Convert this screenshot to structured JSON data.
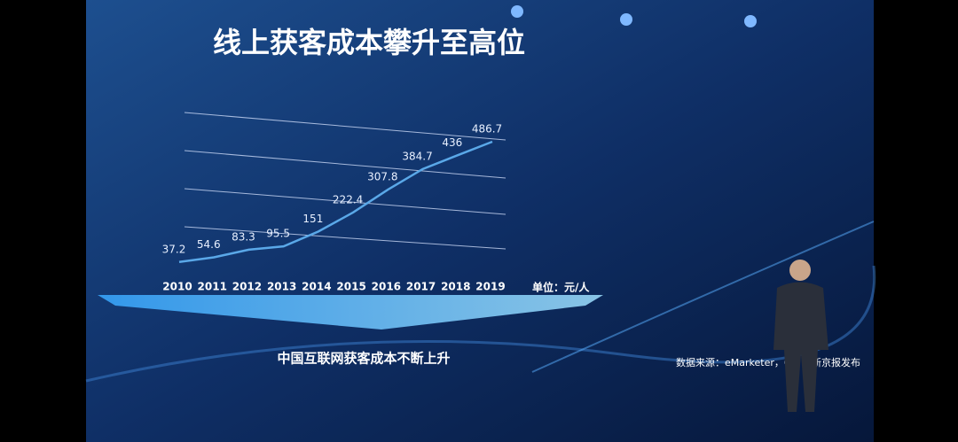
{
  "chart_data": {
    "type": "line",
    "title": "线上获客成本攀升至高位",
    "subtitle": "中国互联网获客成本不断上升",
    "unit_label": "单位：元/人",
    "annotations": [
      "数据来源：eMarketer，C",
      "新京报发布"
    ],
    "categories": [
      "2010",
      "2011",
      "2012",
      "2013",
      "2014",
      "2015",
      "2016",
      "2017",
      "2018",
      "2019"
    ],
    "values": [
      37.2,
      54.6,
      83.3,
      95.5,
      151,
      222.4,
      307.8,
      384.7,
      436,
      486.7
    ],
    "color": "#5aa8e8",
    "ylim": [
      0,
      500
    ]
  }
}
